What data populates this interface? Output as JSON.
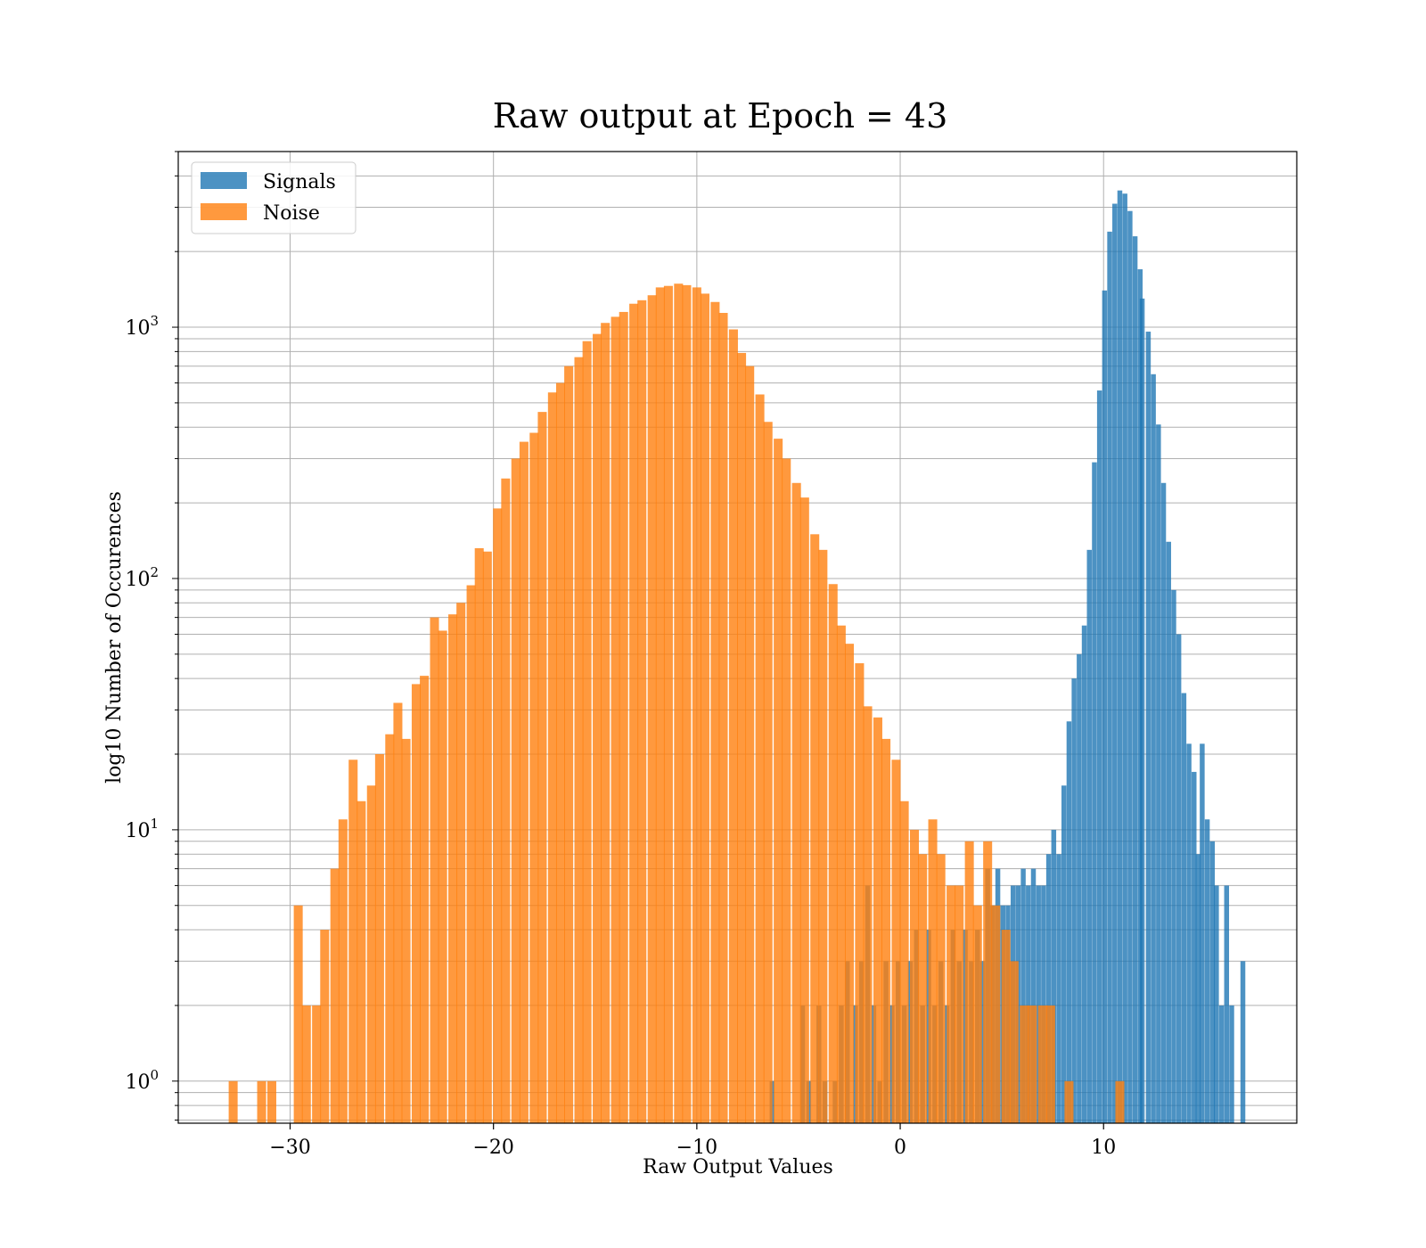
{
  "chart_data": {
    "type": "bar",
    "title": "Raw output at Epoch = 43",
    "xlabel": "Raw Output Values",
    "ylabel": "log10 Number of Occurences",
    "xlim": [
      -35.5,
      19.5
    ],
    "ylim": [
      0.68,
      5000
    ],
    "y_scale": "log",
    "x_ticks": [
      -30,
      -20,
      -10,
      0,
      10
    ],
    "x_tick_labels": [
      "−30",
      "−20",
      "−10",
      "0",
      "10"
    ],
    "y_ticks": [
      1,
      10,
      100,
      1000
    ],
    "y_tick_labels": [
      {
        "base": "10",
        "exp": "0"
      },
      {
        "base": "10",
        "exp": "1"
      },
      {
        "base": "10",
        "exp": "2"
      },
      {
        "base": "10",
        "exp": "3"
      }
    ],
    "grid": true,
    "legend_position": "top-left",
    "colors": {
      "signals": "#1f77b4",
      "noise": "#ff7f0e",
      "axes": "#000000",
      "grid": "#b0b0b0"
    },
    "series": [
      {
        "name": "Signals",
        "color": "#1f77b4",
        "opacity": 0.8,
        "bin_width": 0.24,
        "bins": [
          [
            -6.3,
            1
          ],
          [
            -4.8,
            2
          ],
          [
            -4.5,
            1
          ],
          [
            -4.0,
            2
          ],
          [
            -3.7,
            1
          ],
          [
            -3.2,
            1
          ],
          [
            -2.9,
            2
          ],
          [
            -2.6,
            3
          ],
          [
            -2.2,
            2
          ],
          [
            -1.9,
            3
          ],
          [
            -1.6,
            6
          ],
          [
            -1.3,
            2
          ],
          [
            -1.0,
            1
          ],
          [
            -0.7,
            3
          ],
          [
            -0.4,
            2
          ],
          [
            -0.1,
            3
          ],
          [
            0.2,
            2
          ],
          [
            0.5,
            3
          ],
          [
            0.8,
            4
          ],
          [
            1.1,
            2
          ],
          [
            1.4,
            4
          ],
          [
            1.7,
            2
          ],
          [
            2.0,
            3
          ],
          [
            2.3,
            2
          ],
          [
            2.6,
            4
          ],
          [
            2.9,
            3
          ],
          [
            3.2,
            4
          ],
          [
            3.5,
            3
          ],
          [
            3.8,
            4
          ],
          [
            4.05,
            3
          ],
          [
            4.3,
            7
          ],
          [
            4.55,
            5
          ],
          [
            4.8,
            7
          ],
          [
            5.05,
            5
          ],
          [
            5.3,
            5
          ],
          [
            5.55,
            6
          ],
          [
            5.8,
            6
          ],
          [
            6.05,
            7
          ],
          [
            6.3,
            6
          ],
          [
            6.55,
            7
          ],
          [
            6.8,
            6
          ],
          [
            7.05,
            6
          ],
          [
            7.3,
            8
          ],
          [
            7.55,
            10
          ],
          [
            7.8,
            8
          ],
          [
            8.05,
            15
          ],
          [
            8.3,
            27
          ],
          [
            8.55,
            40
          ],
          [
            8.8,
            50
          ],
          [
            9.05,
            65
          ],
          [
            9.3,
            130
          ],
          [
            9.55,
            290
          ],
          [
            9.8,
            560
          ],
          [
            10.05,
            1400
          ],
          [
            10.3,
            2400
          ],
          [
            10.55,
            3100
          ],
          [
            10.8,
            3500
          ],
          [
            11.05,
            3400
          ],
          [
            11.3,
            2900
          ],
          [
            11.55,
            2300
          ],
          [
            11.8,
            1700
          ],
          [
            11.9,
            1300
          ],
          [
            12.2,
            960
          ],
          [
            12.45,
            650
          ],
          [
            12.7,
            410
          ],
          [
            12.95,
            240
          ],
          [
            13.2,
            140
          ],
          [
            13.45,
            90
          ],
          [
            13.7,
            60
          ],
          [
            13.95,
            35
          ],
          [
            14.2,
            22
          ],
          [
            14.45,
            17
          ],
          [
            14.65,
            8
          ],
          [
            14.85,
            22
          ],
          [
            15.1,
            11
          ],
          [
            15.35,
            9
          ],
          [
            15.55,
            6
          ],
          [
            15.8,
            2
          ],
          [
            16.05,
            6
          ],
          [
            16.3,
            2
          ],
          [
            16.85,
            3
          ]
        ]
      },
      {
        "name": "Noise",
        "color": "#ff7f0e",
        "opacity": 0.8,
        "bin_width": 0.44,
        "bins": [
          [
            -32.8,
            1
          ],
          [
            -31.4,
            1
          ],
          [
            -30.9,
            1
          ],
          [
            -29.6,
            5
          ],
          [
            -29.2,
            2
          ],
          [
            -28.7,
            2
          ],
          [
            -28.3,
            4
          ],
          [
            -27.8,
            7
          ],
          [
            -27.4,
            11
          ],
          [
            -26.9,
            19
          ],
          [
            -26.5,
            13
          ],
          [
            -26.0,
            15
          ],
          [
            -25.6,
            20
          ],
          [
            -25.1,
            24
          ],
          [
            -24.7,
            32
          ],
          [
            -24.3,
            23
          ],
          [
            -23.8,
            38
          ],
          [
            -23.4,
            41
          ],
          [
            -22.9,
            70
          ],
          [
            -22.5,
            62
          ],
          [
            -22.0,
            72
          ],
          [
            -21.6,
            80
          ],
          [
            -21.1,
            94
          ],
          [
            -20.7,
            132
          ],
          [
            -20.3,
            128
          ],
          [
            -19.8,
            190
          ],
          [
            -19.4,
            250
          ],
          [
            -18.9,
            300
          ],
          [
            -18.5,
            350
          ],
          [
            -18.0,
            380
          ],
          [
            -17.6,
            460
          ],
          [
            -17.1,
            550
          ],
          [
            -16.7,
            600
          ],
          [
            -16.3,
            700
          ],
          [
            -15.8,
            760
          ],
          [
            -15.4,
            880
          ],
          [
            -14.9,
            940
          ],
          [
            -14.5,
            1040
          ],
          [
            -14.0,
            1100
          ],
          [
            -13.6,
            1150
          ],
          [
            -13.1,
            1240
          ],
          [
            -12.7,
            1280
          ],
          [
            -12.2,
            1340
          ],
          [
            -11.8,
            1440
          ],
          [
            -11.4,
            1460
          ],
          [
            -10.9,
            1490
          ],
          [
            -10.5,
            1470
          ],
          [
            -10.0,
            1440
          ],
          [
            -9.6,
            1360
          ],
          [
            -9.1,
            1260
          ],
          [
            -8.7,
            1140
          ],
          [
            -8.2,
            980
          ],
          [
            -7.8,
            790
          ],
          [
            -7.4,
            700
          ],
          [
            -6.9,
            540
          ],
          [
            -6.5,
            420
          ],
          [
            -6.0,
            360
          ],
          [
            -5.6,
            300
          ],
          [
            -5.1,
            240
          ],
          [
            -4.7,
            210
          ],
          [
            -4.2,
            150
          ],
          [
            -3.8,
            130
          ],
          [
            -3.3,
            95
          ],
          [
            -2.9,
            65
          ],
          [
            -2.5,
            55
          ],
          [
            -2.0,
            46
          ],
          [
            -1.6,
            31
          ],
          [
            -1.1,
            28
          ],
          [
            -0.7,
            23
          ],
          [
            -0.2,
            19
          ],
          [
            0.2,
            13
          ],
          [
            0.7,
            10
          ],
          [
            1.1,
            8
          ],
          [
            1.6,
            11
          ],
          [
            2.0,
            8
          ],
          [
            2.5,
            6
          ],
          [
            2.9,
            6
          ],
          [
            3.4,
            9
          ],
          [
            3.8,
            5
          ],
          [
            4.3,
            9
          ],
          [
            4.7,
            5
          ],
          [
            5.2,
            4
          ],
          [
            5.6,
            3
          ],
          [
            6.1,
            2
          ],
          [
            6.5,
            2
          ],
          [
            7.0,
            2
          ],
          [
            7.4,
            2
          ],
          [
            8.3,
            1
          ],
          [
            10.8,
            1
          ]
        ]
      }
    ],
    "legend": {
      "signals_label": "Signals",
      "noise_label": "Noise"
    }
  }
}
